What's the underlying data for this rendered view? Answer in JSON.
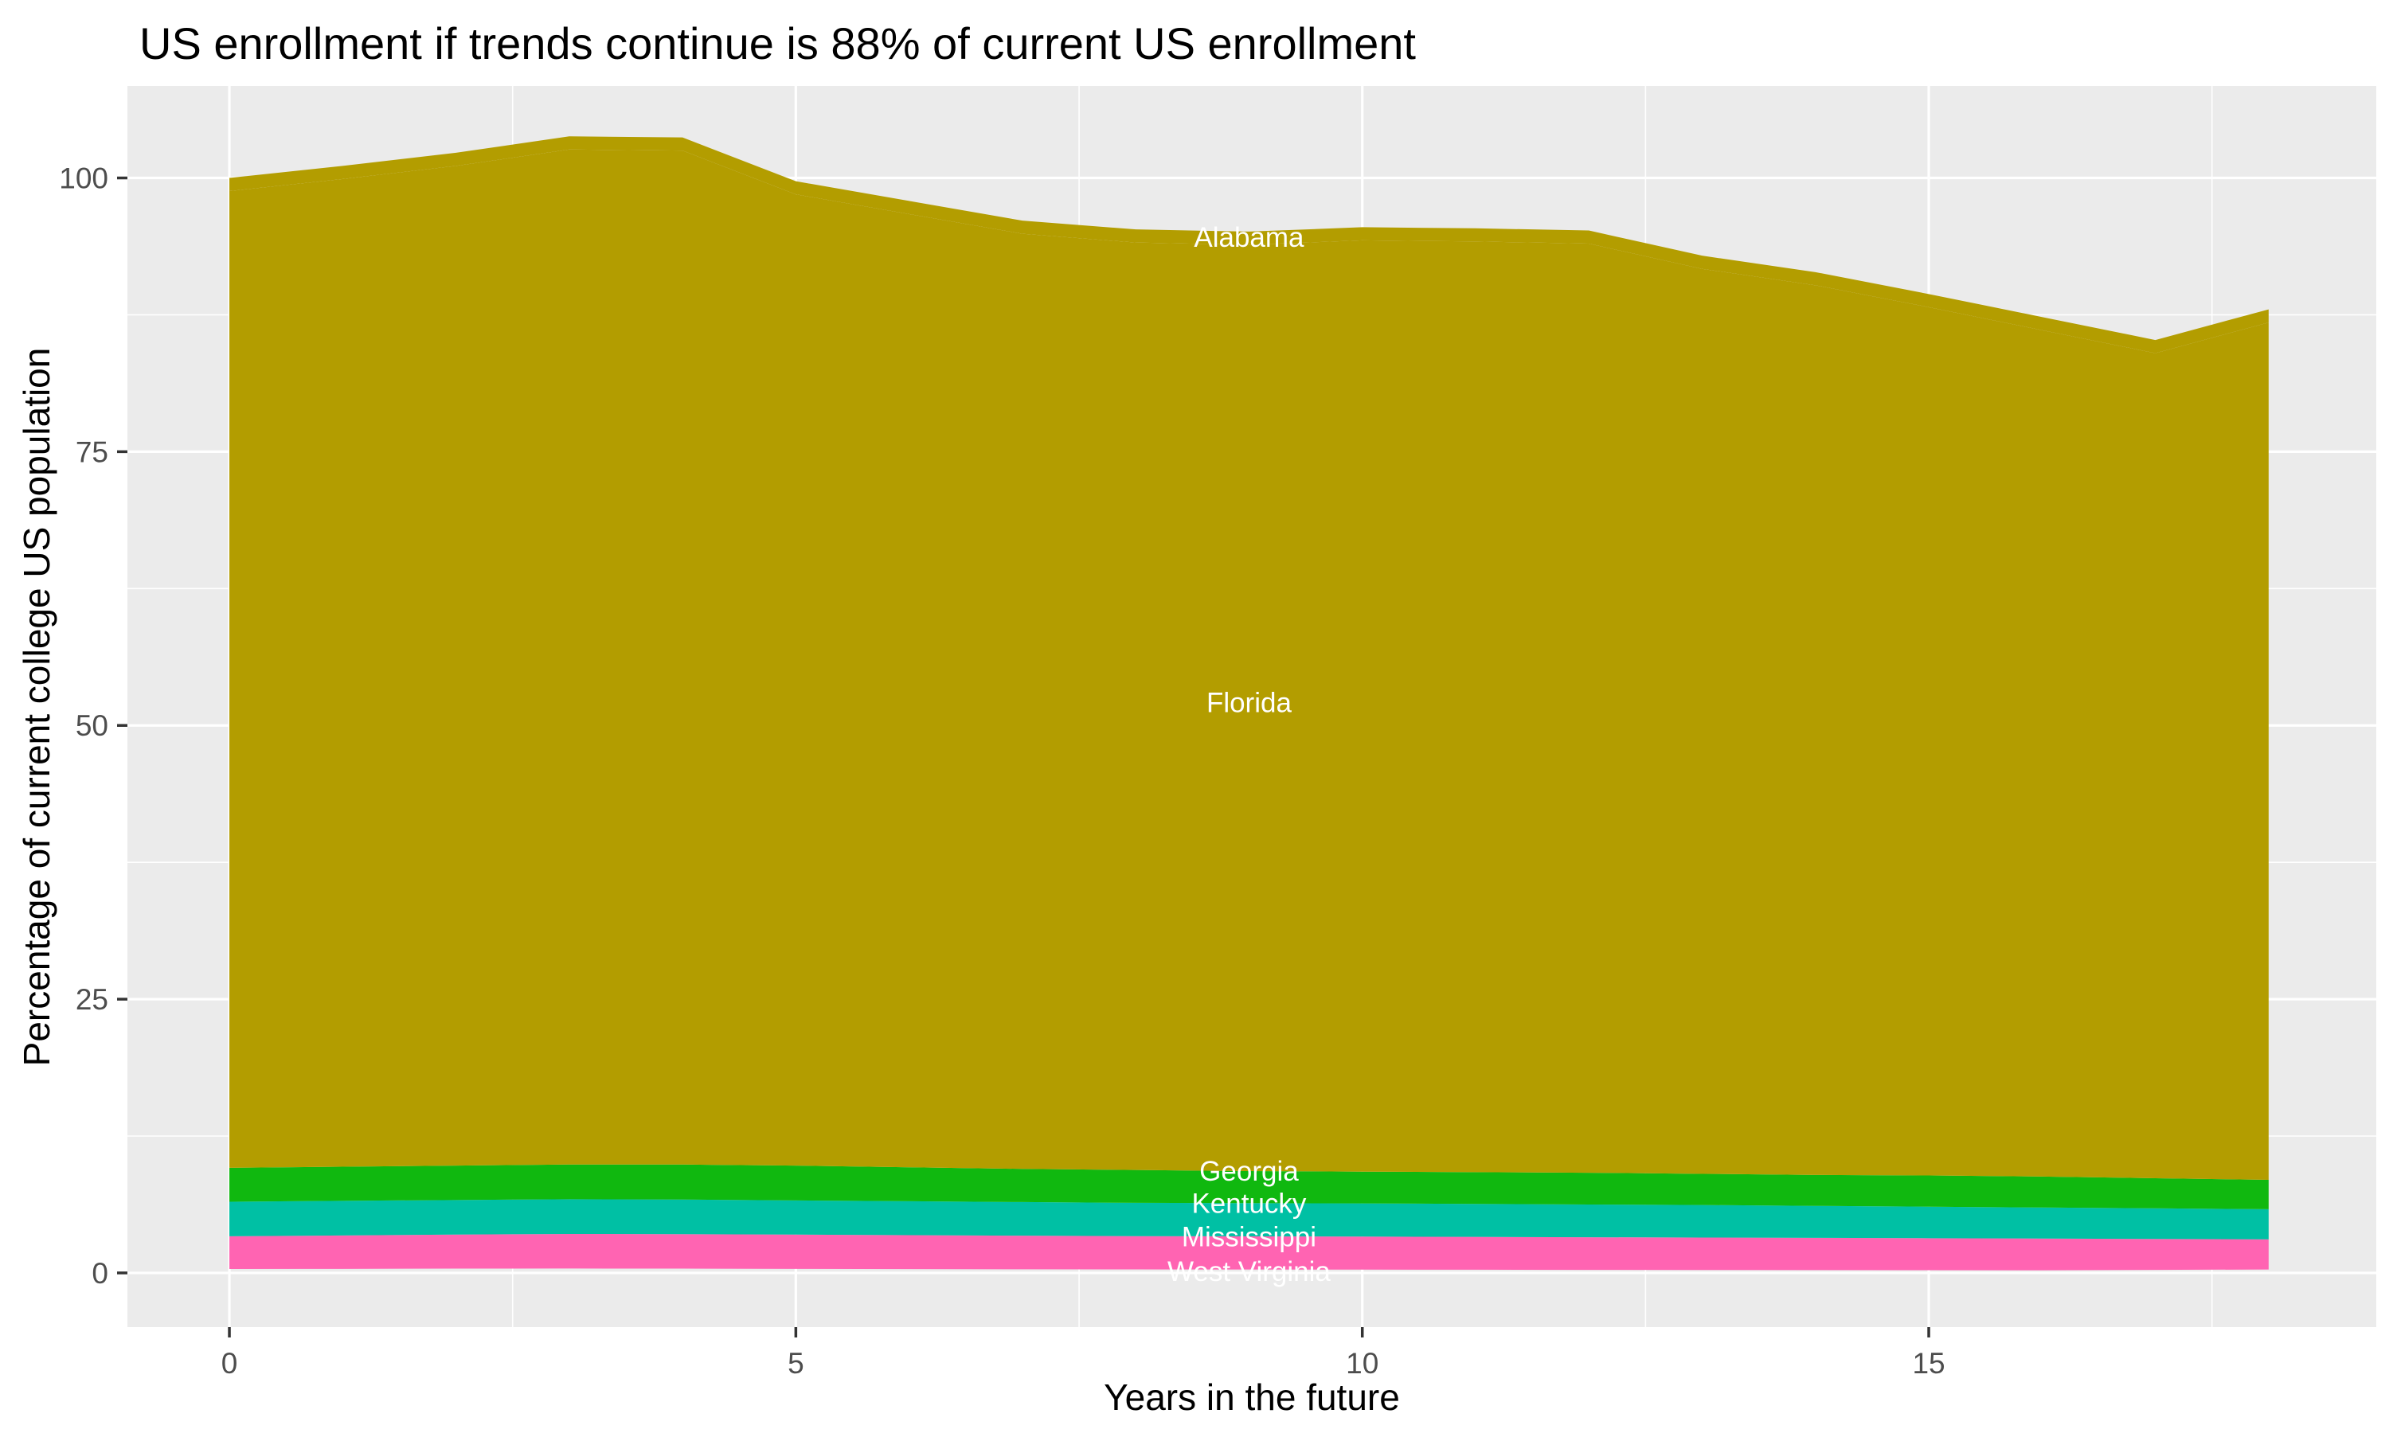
{
  "chart_data": {
    "type": "area",
    "title": "US enrollment if trends continue is 88% of current US enrollment",
    "xlabel": "Years in the future",
    "ylabel": "Percentage of current college US population",
    "x": [
      0,
      1,
      2,
      3,
      4,
      5,
      6,
      7,
      8,
      9,
      10,
      11,
      12,
      13,
      14,
      15,
      16,
      17,
      18
    ],
    "xlim": [
      -0.9,
      18.95
    ],
    "ylim": [
      -4.95,
      108.4
    ],
    "x_ticks": [
      0,
      5,
      10,
      15
    ],
    "y_ticks": [
      0,
      25,
      50,
      75,
      100
    ],
    "x_minor_gridlines": [
      2.5,
      7.5,
      12.5,
      17.5
    ],
    "y_minor_gridlines": [
      12.5,
      37.5,
      62.5,
      87.5
    ],
    "grid": true,
    "legend": "none",
    "stacking": "states stacked bottom-to-top: West Virginia, Mississippi, Kentucky, Georgia, Florida, Alabama; values are cumulative stack tops in percent",
    "series": [
      {
        "name": "West Virginia",
        "fill": null,
        "stack_top": [
          0.36,
          0.37,
          0.39,
          0.4,
          0.39,
          0.37,
          0.35,
          0.33,
          0.32,
          0.31,
          0.3,
          0.29,
          0.28,
          0.27,
          0.26,
          0.25,
          0.24,
          0.28,
          0.31
        ]
      },
      {
        "name": "Mississippi",
        "fill": "#FF64B2",
        "stack_top": [
          3.35,
          3.42,
          3.5,
          3.56,
          3.54,
          3.5,
          3.45,
          3.4,
          3.36,
          3.34,
          3.32,
          3.29,
          3.26,
          3.23,
          3.2,
          3.17,
          3.14,
          3.1,
          3.07
        ]
      },
      {
        "name": "Kentucky",
        "fill": "#00C0A4",
        "stack_top": [
          6.5,
          6.58,
          6.66,
          6.73,
          6.7,
          6.62,
          6.55,
          6.47,
          6.4,
          6.37,
          6.35,
          6.3,
          6.25,
          6.2,
          6.12,
          6.05,
          5.97,
          5.9,
          5.82
        ]
      },
      {
        "name": "Georgia",
        "fill": "#10B80F",
        "stack_top": [
          9.6,
          9.7,
          9.8,
          9.9,
          9.9,
          9.8,
          9.65,
          9.5,
          9.4,
          9.3,
          9.25,
          9.2,
          9.15,
          9.05,
          8.95,
          8.9,
          8.8,
          8.65,
          8.5
        ]
      },
      {
        "name": "Florida",
        "fill": "#B39D00",
        "stack_top": [
          98.8,
          99.9,
          101.1,
          102.6,
          102.5,
          98.5,
          96.7,
          94.9,
          94.1,
          93.9,
          94.3,
          94.2,
          94.0,
          91.7,
          90.2,
          88.2,
          86.1,
          84.0,
          86.8
        ]
      },
      {
        "name": "Alabama",
        "fill": "#B39D00",
        "stack_top": [
          100.0,
          101.1,
          102.3,
          103.8,
          103.7,
          99.7,
          97.9,
          96.1,
          95.3,
          95.1,
          95.5,
          95.4,
          95.2,
          92.9,
          91.4,
          89.4,
          87.3,
          85.2,
          88.0
        ]
      }
    ],
    "area_labels": [
      {
        "text": "Alabama",
        "x": 9,
        "y": 94.6
      },
      {
        "text": "Florida",
        "x": 9,
        "y": 52.1
      },
      {
        "text": "Georgia",
        "x": 9,
        "y": 9.3
      },
      {
        "text": "Kentucky",
        "x": 9,
        "y": 6.35
      },
      {
        "text": "Mississippi",
        "x": 9,
        "y": 3.32
      },
      {
        "text": "West Virginia",
        "x": 9,
        "y": 0.15
      }
    ],
    "colors": {
      "panel_background": "#EBEBEB",
      "gridline": "#FFFFFF",
      "tick_mark": "#333333",
      "tick_label": "#4D4D4D",
      "title_text": "#000000",
      "area_label_text": "#FFFFFF"
    }
  }
}
